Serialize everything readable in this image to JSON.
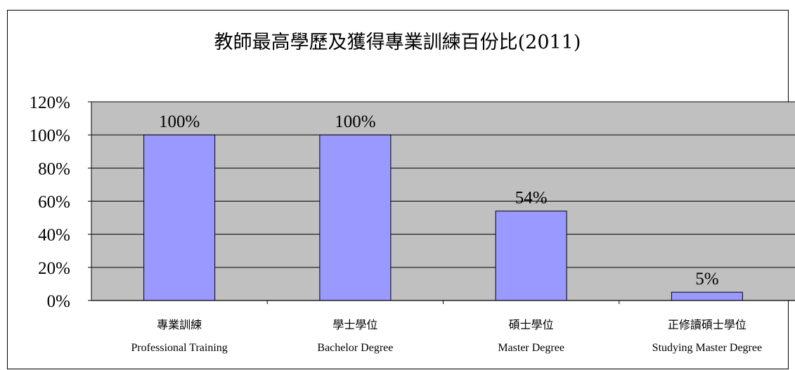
{
  "chart_data": {
    "type": "bar",
    "title": "教師最高學歷及獲得專業訓練百份比(2011)",
    "categories": [
      {
        "zh": "專業訓練",
        "en": "Professional Training"
      },
      {
        "zh": "學士學位",
        "en": "Bachelor Degree"
      },
      {
        "zh": "碩士學位",
        "en": "Master Degree"
      },
      {
        "zh": "正修讀碩士學位",
        "en": "Studying Master Degree"
      }
    ],
    "values": [
      100,
      100,
      54,
      5
    ],
    "data_labels": [
      "100%",
      "100%",
      "54%",
      "5%"
    ],
    "ylim": [
      0,
      120
    ],
    "yticks": [
      0,
      20,
      40,
      60,
      80,
      100,
      120
    ],
    "ytick_labels": [
      "0%",
      "20%",
      "40%",
      "60%",
      "80%",
      "100%",
      "120%"
    ],
    "grid": true,
    "colors": {
      "bar": "#9999ff",
      "plot_bg": "#c0c0c0"
    }
  }
}
